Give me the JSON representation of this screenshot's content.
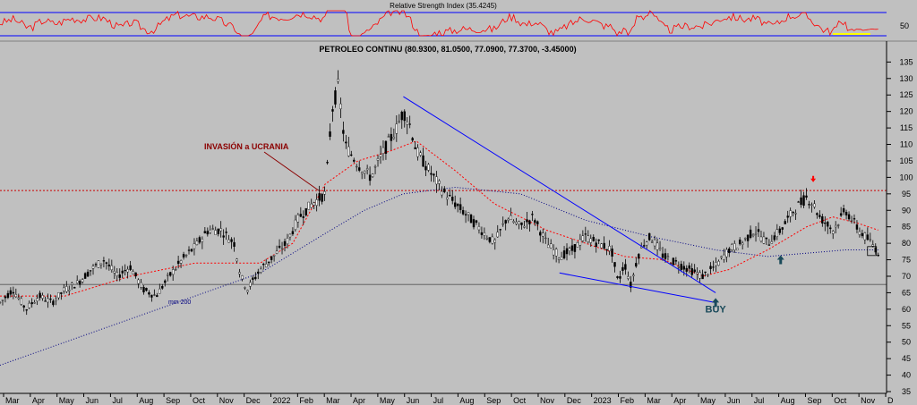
{
  "chart_data": [
    {
      "type": "line",
      "panel": "indicator",
      "title": "Relative Strength Index (35.4245)",
      "y_tick_labels": [
        "50"
      ],
      "rsi_level": 35.4245,
      "series_color": "#ff0000",
      "band_color": "#0000ff"
    },
    {
      "type": "candlestick",
      "panel": "price",
      "title": "PETROLEO CONTINU (80.9300, 81.0500, 77.0900, 77.3700, -3.45000)",
      "ylim": [
        35,
        137
      ],
      "y_ticks": [
        35,
        40,
        45,
        50,
        55,
        60,
        65,
        70,
        75,
        80,
        85,
        90,
        95,
        100,
        105,
        110,
        115,
        120,
        125,
        130,
        135
      ],
      "x_tick_labels": [
        "Mar",
        "Apr",
        "May",
        "Jun",
        "Jul",
        "Aug",
        "Sep",
        "Oct",
        "Nov",
        "Dec",
        "2022",
        "Feb",
        "Mar",
        "Apr",
        "May",
        "Jun",
        "Jul",
        "Aug",
        "Sep",
        "Oct",
        "Nov",
        "Dec",
        "2023",
        "Feb",
        "Mar",
        "Apr",
        "May",
        "Jun",
        "Jul",
        "Aug",
        "Sep",
        "Oct",
        "Nov",
        "D"
      ],
      "price_path": [
        [
          0,
          62
        ],
        [
          2,
          66
        ],
        [
          4,
          60
        ],
        [
          6,
          64
        ],
        [
          8,
          62
        ],
        [
          10,
          66
        ],
        [
          12,
          68
        ],
        [
          14,
          72
        ],
        [
          16,
          75
        ],
        [
          18,
          70
        ],
        [
          20,
          73
        ],
        [
          22,
          66
        ],
        [
          24,
          64
        ],
        [
          26,
          70
        ],
        [
          28,
          75
        ],
        [
          30,
          79
        ],
        [
          32,
          84
        ],
        [
          34,
          84
        ],
        [
          36,
          80
        ],
        [
          37,
          70
        ],
        [
          38,
          66
        ],
        [
          40,
          72
        ],
        [
          42,
          76
        ],
        [
          44,
          80
        ],
        [
          46,
          88
        ],
        [
          48,
          92
        ],
        [
          50,
          95
        ],
        [
          51,
          120
        ],
        [
          52,
          128
        ],
        [
          53,
          110
        ],
        [
          55,
          104
        ],
        [
          57,
          100
        ],
        [
          59,
          108
        ],
        [
          61,
          115
        ],
        [
          62,
          120
        ],
        [
          63,
          116
        ],
        [
          64,
          108
        ],
        [
          66,
          102
        ],
        [
          68,
          96
        ],
        [
          70,
          92
        ],
        [
          72,
          88
        ],
        [
          74,
          84
        ],
        [
          76,
          80
        ],
        [
          78,
          88
        ],
        [
          80,
          85
        ],
        [
          82,
          88
        ],
        [
          84,
          80
        ],
        [
          86,
          76
        ],
        [
          88,
          78
        ],
        [
          90,
          82
        ],
        [
          92,
          80
        ],
        [
          94,
          78
        ],
        [
          95,
          68
        ],
        [
          96,
          74
        ],
        [
          97,
          67
        ],
        [
          98,
          76
        ],
        [
          99,
          80
        ],
        [
          100,
          82
        ],
        [
          102,
          76
        ],
        [
          104,
          74
        ],
        [
          106,
          72
        ],
        [
          108,
          70
        ],
        [
          110,
          73
        ],
        [
          112,
          78
        ],
        [
          114,
          80
        ],
        [
          116,
          84
        ],
        [
          118,
          80
        ],
        [
          120,
          84
        ],
        [
          122,
          90
        ],
        [
          124,
          94
        ],
        [
          125,
          92
        ],
        [
          126,
          88
        ],
        [
          128,
          84
        ],
        [
          130,
          90
        ],
        [
          132,
          84
        ],
        [
          134,
          80
        ],
        [
          135,
          77.37
        ]
      ],
      "x_range": [
        0,
        136
      ],
      "ma_short_path": [
        [
          0,
          64
        ],
        [
          10,
          64
        ],
        [
          20,
          70
        ],
        [
          30,
          74
        ],
        [
          40,
          74
        ],
        [
          45,
          80
        ],
        [
          50,
          98
        ],
        [
          55,
          105
        ],
        [
          60,
          108
        ],
        [
          64,
          111
        ],
        [
          70,
          102
        ],
        [
          76,
          92
        ],
        [
          84,
          84
        ],
        [
          90,
          80
        ],
        [
          96,
          76
        ],
        [
          102,
          75
        ],
        [
          108,
          70
        ],
        [
          112,
          72
        ],
        [
          118,
          78
        ],
        [
          124,
          85
        ],
        [
          128,
          88
        ],
        [
          132,
          86
        ],
        [
          135,
          84
        ]
      ],
      "ma_long_path": [
        [
          0,
          43
        ],
        [
          10,
          50
        ],
        [
          20,
          57
        ],
        [
          30,
          64
        ],
        [
          40,
          71
        ],
        [
          50,
          83
        ],
        [
          56,
          90
        ],
        [
          62,
          95
        ],
        [
          70,
          97
        ],
        [
          80,
          95
        ],
        [
          90,
          87
        ],
        [
          100,
          82
        ],
        [
          110,
          78
        ],
        [
          118,
          76
        ],
        [
          124,
          77
        ],
        [
          130,
          78
        ],
        [
          135,
          78
        ]
      ],
      "downtrend_line": [
        [
          62,
          124.5
        ],
        [
          110,
          65
        ]
      ],
      "support_line": [
        [
          86,
          71
        ],
        [
          110,
          62
        ]
      ],
      "resistance_level": 96,
      "support_level": 67.5,
      "price_line_color": "#000000",
      "ma_short_color": "#ff0000",
      "ma_long_color": "#000080",
      "trend_color": "#0000ff",
      "annotations": [
        {
          "text": "INVASIÓN a UCRANIA",
          "color": "#8b0000",
          "target": [
            49,
            96
          ]
        },
        {
          "text": "mm 200",
          "color": "#000080"
        },
        {
          "text": "BUY",
          "color": "#1a4a5a",
          "target": [
            110,
            65
          ]
        },
        {
          "text": "up-arrow",
          "color": "#1a4a5a",
          "target": [
            110,
            65
          ]
        },
        {
          "text": "up-arrow",
          "color": "#1a4a5a",
          "target": [
            120,
            78
          ]
        },
        {
          "text": "down-arrow",
          "color": "#ff0000",
          "target": [
            125,
            98
          ]
        }
      ]
    }
  ]
}
